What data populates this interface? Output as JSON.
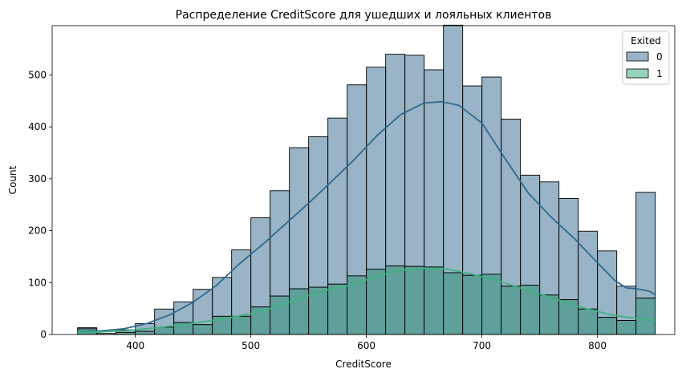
{
  "chart_data": {
    "type": "bar",
    "title": "Распределение CreditScore для ушедших и лояльных клиентов",
    "xlabel": "CreditScore",
    "ylabel": "Count",
    "xlim": [
      328,
      867
    ],
    "ylim": [
      0,
      595
    ],
    "xticks": [
      400,
      500,
      600,
      700,
      800
    ],
    "yticks": [
      0,
      100,
      200,
      300,
      400,
      500
    ],
    "grid": false,
    "legend": {
      "title": "Exited",
      "placement": "top-right"
    },
    "bin_start": 350,
    "bin_width": 16.67,
    "series": [
      {
        "name": "0",
        "color": "#5b86a3",
        "line_color": "#2e6a8e",
        "values": [
          2,
          2,
          5,
          15,
          35,
          40,
          68,
          75,
          128,
          172,
          203,
          272,
          290,
          320,
          368,
          389,
          408,
          407,
          380,
          477,
          365,
          380,
          322,
          212,
          218,
          195,
          150,
          128,
          66,
          204
        ],
        "kde": [
          [
            350,
            1
          ],
          [
            370,
            2
          ],
          [
            390,
            4
          ],
          [
            410,
            10
          ],
          [
            430,
            22
          ],
          [
            450,
            40
          ],
          [
            470,
            66
          ],
          [
            490,
            100
          ],
          [
            510,
            128
          ],
          [
            530,
            153
          ],
          [
            550,
            178
          ],
          [
            570,
            207
          ],
          [
            590,
            240
          ],
          [
            610,
            272
          ],
          [
            630,
            300
          ],
          [
            650,
            318
          ],
          [
            665,
            322
          ],
          [
            680,
            320
          ],
          [
            700,
            296
          ],
          [
            720,
            240
          ],
          [
            740,
            188
          ],
          [
            760,
            155
          ],
          [
            780,
            128
          ],
          [
            800,
            94
          ],
          [
            815,
            67
          ],
          [
            825,
            56
          ],
          [
            835,
            57
          ],
          [
            845,
            55
          ],
          [
            850,
            50
          ]
        ]
      },
      {
        "name": "1",
        "color": "#3fb27f",
        "line_color": "#3fb27f",
        "values": [
          11,
          0,
          4,
          6,
          14,
          23,
          19,
          35,
          35,
          53,
          74,
          88,
          91,
          97,
          113,
          126,
          132,
          131,
          130,
          119,
          114,
          116,
          93,
          95,
          76,
          67,
          49,
          33,
          27,
          70
        ],
        "kde": [
          [
            350,
            4
          ],
          [
            370,
            5
          ],
          [
            390,
            7
          ],
          [
            410,
            11
          ],
          [
            430,
            16
          ],
          [
            450,
            22
          ],
          [
            470,
            28
          ],
          [
            490,
            36
          ],
          [
            510,
            45
          ],
          [
            530,
            60
          ],
          [
            550,
            75
          ],
          [
            570,
            88
          ],
          [
            590,
            98
          ],
          [
            610,
            113
          ],
          [
            630,
            124
          ],
          [
            650,
            128
          ],
          [
            670,
            126
          ],
          [
            690,
            117
          ],
          [
            710,
            106
          ],
          [
            730,
            92
          ],
          [
            750,
            78
          ],
          [
            770,
            64
          ],
          [
            790,
            50
          ],
          [
            810,
            39
          ],
          [
            830,
            32
          ],
          [
            850,
            27
          ]
        ]
      }
    ]
  }
}
